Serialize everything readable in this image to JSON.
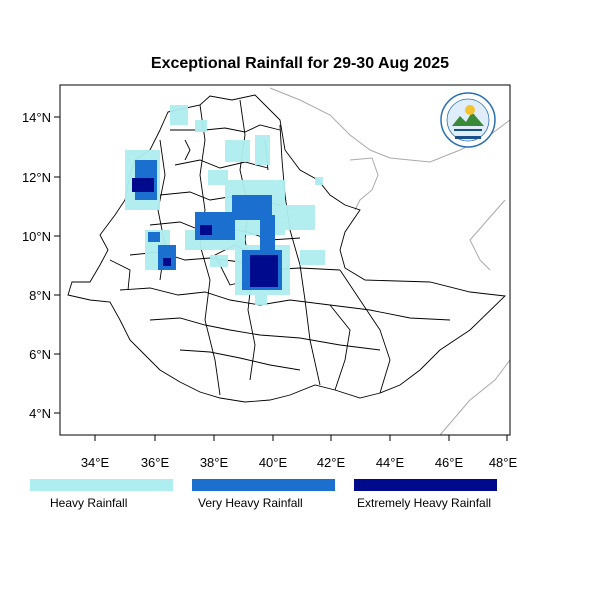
{
  "title": "Exceptional Rainfall for 29-30 Aug 2025",
  "x_ticks": [
    "34°E",
    "36°E",
    "38°E",
    "40°E",
    "42°E",
    "44°E",
    "46°E",
    "48°E"
  ],
  "y_ticks": [
    "14°N",
    "12°N",
    "10°N",
    "8°N",
    "6°N",
    "4°N"
  ],
  "legend": [
    {
      "label": "Heavy Rainfall",
      "color": "#aeeef0"
    },
    {
      "label": "Very Heavy Rainfall",
      "color": "#1a6fcf"
    },
    {
      "label": "Extremely Heavy Rainfall",
      "color": "#000a8c"
    }
  ],
  "colors": {
    "border": "#000000",
    "neighbor_border": "#aaaaaa"
  },
  "icons": [
    "logo-seal"
  ]
}
